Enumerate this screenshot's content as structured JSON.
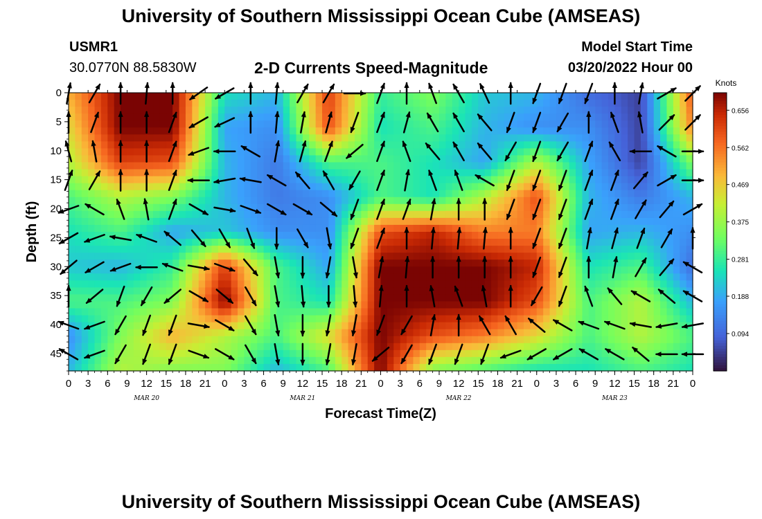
{
  "page": {
    "title": "University of Southern Mississippi Ocean Cube (AMSEAS)",
    "footer_title": "University of Southern Mississippi Ocean Cube (AMSEAS)"
  },
  "header": {
    "station": "USMR1",
    "coords": "30.0770N  88.5830W",
    "product": "2-D Currents Speed-Magnitude",
    "model_start_label": "Model Start Time",
    "model_start_value": "03/20/2022 Hour 00"
  },
  "chart_data": {
    "type": "heatmap",
    "title": "2-D Currents Speed-Magnitude",
    "xlabel": "Forecast Time(Z)",
    "ylabel": "Depth (ft)",
    "x_ticks": [
      "0",
      "3",
      "6",
      "9",
      "12",
      "15",
      "18",
      "21",
      "0",
      "3",
      "6",
      "9",
      "12",
      "15",
      "18",
      "21",
      "0",
      "3",
      "6",
      "9",
      "12",
      "15",
      "18",
      "21",
      "0",
      "3",
      "6",
      "9",
      "12",
      "15",
      "18",
      "21",
      "0"
    ],
    "x_hours_range": [
      0,
      96
    ],
    "date_labels": [
      {
        "label": "MAR 20",
        "hour": 12
      },
      {
        "label": "MAR 21",
        "hour": 36
      },
      {
        "label": "MAR 22",
        "hour": 60
      },
      {
        "label": "MAR 23",
        "hour": 84
      }
    ],
    "y_ticks": [
      "0",
      "5",
      "10",
      "15",
      "20",
      "25",
      "30",
      "35",
      "40",
      "45"
    ],
    "y_range": [
      0,
      48
    ],
    "colorbar": {
      "unit": "Knots",
      "ticks": [
        "0.656",
        "0.562",
        "0.469",
        "0.375",
        "0.281",
        "0.188",
        "0.094"
      ],
      "range": [
        0.0,
        0.7
      ]
    },
    "speed_samples": {
      "hours": [
        0,
        8,
        16,
        24,
        32,
        40,
        48,
        56,
        64,
        72,
        80,
        88,
        96
      ],
      "depths": [
        0,
        6,
        12,
        18,
        24,
        30,
        36,
        42,
        48
      ],
      "values": [
        [
          0.5,
          0.7,
          0.7,
          0.25,
          0.2,
          0.62,
          0.28,
          0.35,
          0.22,
          0.2,
          0.1,
          0.05,
          0.6
        ],
        [
          0.45,
          0.7,
          0.7,
          0.18,
          0.15,
          0.6,
          0.25,
          0.3,
          0.2,
          0.15,
          0.15,
          0.05,
          0.55
        ],
        [
          0.4,
          0.62,
          0.6,
          0.2,
          0.12,
          0.3,
          0.3,
          0.25,
          0.18,
          0.4,
          0.18,
          0.05,
          0.35
        ],
        [
          0.3,
          0.4,
          0.35,
          0.2,
          0.12,
          0.15,
          0.3,
          0.25,
          0.4,
          0.6,
          0.2,
          0.12,
          0.2
        ],
        [
          0.25,
          0.3,
          0.18,
          0.22,
          0.15,
          0.15,
          0.6,
          0.65,
          0.55,
          0.55,
          0.18,
          0.2,
          0.15
        ],
        [
          0.22,
          0.2,
          0.28,
          0.62,
          0.3,
          0.18,
          0.7,
          0.7,
          0.7,
          0.65,
          0.25,
          0.3,
          0.1
        ],
        [
          0.3,
          0.3,
          0.35,
          0.7,
          0.3,
          0.25,
          0.7,
          0.7,
          0.7,
          0.6,
          0.3,
          0.4,
          0.2
        ],
        [
          0.15,
          0.35,
          0.5,
          0.4,
          0.3,
          0.45,
          0.7,
          0.6,
          0.55,
          0.45,
          0.3,
          0.4,
          0.3
        ],
        [
          0.2,
          0.4,
          0.35,
          0.35,
          0.2,
          0.3,
          0.7,
          0.35,
          0.3,
          0.25,
          0.25,
          0.3,
          0.25
        ]
      ]
    },
    "vector_samples": {
      "hours": [
        0,
        4,
        8,
        12,
        16,
        20,
        24,
        28,
        32,
        36,
        40,
        44,
        48,
        52,
        56,
        60,
        64,
        68,
        72,
        76,
        80,
        84,
        88,
        92,
        96
      ],
      "depths": [
        0,
        5,
        10,
        15,
        20,
        25,
        30,
        35,
        40,
        45
      ],
      "directions_deg": [
        [
          10,
          30,
          0,
          5,
          0,
          235,
          240,
          0,
          5,
          30,
          30,
          90,
          20,
          0,
          340,
          330,
          335,
          0,
          200,
          200,
          200,
          0,
          10,
          60,
          45
        ],
        [
          0,
          20,
          0,
          0,
          20,
          240,
          245,
          0,
          5,
          10,
          15,
          200,
          20,
          15,
          330,
          330,
          320,
          200,
          200,
          210,
          0,
          340,
          350,
          45,
          45
        ],
        [
          345,
          350,
          0,
          0,
          20,
          250,
          270,
          300,
          10,
          15,
          20,
          230,
          20,
          340,
          320,
          330,
          320,
          210,
          200,
          210,
          20,
          330,
          270,
          300,
          90
        ],
        [
          20,
          30,
          0,
          0,
          20,
          270,
          260,
          280,
          300,
          320,
          330,
          210,
          20,
          10,
          340,
          340,
          300,
          200,
          200,
          200,
          20,
          20,
          40,
          60,
          90
        ],
        [
          250,
          300,
          340,
          350,
          20,
          120,
          100,
          110,
          120,
          120,
          130,
          200,
          20,
          20,
          10,
          0,
          0,
          200,
          200,
          200,
          20,
          20,
          30,
          40,
          60
        ],
        [
          240,
          250,
          280,
          290,
          310,
          140,
          150,
          160,
          180,
          150,
          170,
          200,
          20,
          0,
          5,
          5,
          5,
          0,
          200,
          200,
          10,
          15,
          20,
          30,
          0
        ],
        [
          230,
          240,
          250,
          270,
          290,
          100,
          110,
          140,
          170,
          180,
          190,
          170,
          10,
          5,
          0,
          0,
          0,
          0,
          200,
          200,
          0,
          10,
          30,
          40,
          300
        ],
        [
          0,
          230,
          200,
          210,
          230,
          120,
          130,
          150,
          170,
          175,
          180,
          175,
          5,
          0,
          350,
          340,
          350,
          0,
          210,
          200,
          340,
          320,
          300,
          310,
          300
        ],
        [
          290,
          250,
          210,
          200,
          200,
          100,
          120,
          150,
          170,
          180,
          190,
          190,
          200,
          210,
          10,
          0,
          330,
          330,
          310,
          300,
          290,
          290,
          280,
          260,
          260
        ],
        [
          300,
          250,
          210,
          200,
          200,
          110,
          120,
          150,
          170,
          180,
          190,
          190,
          230,
          210,
          200,
          200,
          200,
          250,
          240,
          240,
          300,
          300,
          310,
          270,
          270
        ]
      ]
    }
  }
}
